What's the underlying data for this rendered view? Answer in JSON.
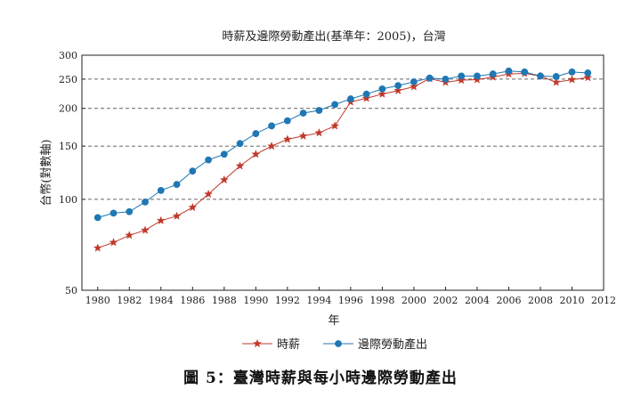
{
  "caption": "圖 5：臺灣時薪與每小時邊際勞動產出",
  "chart_data": {
    "type": "line",
    "title": "時薪及邊際勞動產出(基準年：2005)，台灣",
    "xlabel": "年",
    "ylabel": "台幣(對數軸)",
    "y_scale": "log",
    "xlim": [
      1979,
      2012
    ],
    "ylim": [
      50,
      300
    ],
    "x_ticks": [
      1980,
      1982,
      1984,
      1986,
      1988,
      1990,
      1992,
      1994,
      1996,
      1998,
      2000,
      2002,
      2004,
      2006,
      2008,
      2010,
      2012
    ],
    "y_ticks": [
      50,
      100,
      150,
      200,
      250,
      300
    ],
    "grid": "horizontal-dashed",
    "legend_position": "bottom",
    "x": [
      1980,
      1981,
      1982,
      1983,
      1984,
      1985,
      1986,
      1987,
      1988,
      1989,
      1990,
      1991,
      1992,
      1993,
      1994,
      1995,
      1996,
      1997,
      1998,
      1999,
      2000,
      2001,
      2002,
      2003,
      2004,
      2005,
      2006,
      2007,
      2008,
      2009,
      2010,
      2011
    ],
    "series": [
      {
        "name": "時薪",
        "color": "#c0392b",
        "marker": "star",
        "values": [
          69,
          72,
          76,
          79,
          85,
          88,
          94,
          104,
          116,
          129,
          141,
          150,
          158,
          162,
          166,
          175,
          210,
          216,
          223,
          229,
          236,
          251,
          244,
          248,
          249,
          254,
          260,
          261,
          256,
          244,
          249,
          253
        ]
      },
      {
        "name": "邊際勞動產出",
        "color": "#1f77b4",
        "marker": "circle",
        "values": [
          87,
          90,
          91,
          98,
          107,
          112,
          124,
          135,
          141,
          153,
          165,
          175,
          182,
          193,
          197,
          206,
          215,
          223,
          232,
          238,
          245,
          252,
          250,
          256,
          256,
          260,
          266,
          264,
          256,
          255,
          264,
          262
        ]
      }
    ]
  }
}
